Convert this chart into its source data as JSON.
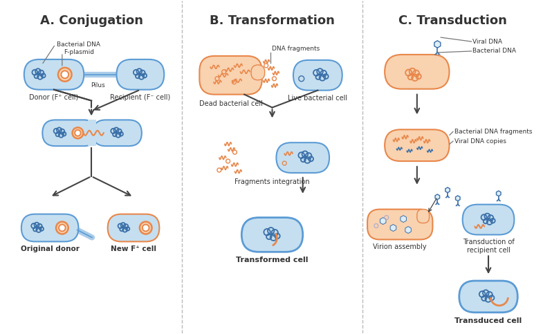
{
  "title_A": "A. Conjugation",
  "title_B": "B. Transformation",
  "title_C": "C. Transduction",
  "color_orange_fill": "#f9d2b0",
  "color_orange_stroke": "#e8874a",
  "color_blue_fill": "#c5dff0",
  "color_blue_stroke": "#5b9bd5",
  "color_dark_blue": "#3a6fa8",
  "color_light_blue_fill": "#ddeef8",
  "color_arrow": "#444444",
  "color_text": "#333333",
  "color_divider": "#bbbbbb",
  "background": "#ffffff",
  "label_donor": "Donor (F⁺ cell)",
  "label_recipient": "Recipient (F⁻ cell)",
  "label_bacterial_dna": "Bacterial DNA",
  "label_f_plasmid": "F-plasmid",
  "label_pilus": "Pilus",
  "label_original_donor": "Original donor",
  "label_new_f": "New F⁺ cell",
  "label_dead_cell": "Dead bacterial cell",
  "label_live_cell": "Live bacterial cell",
  "label_dna_fragments": "DNA fragments",
  "label_fragments_integration": "Fragments integration",
  "label_transformed_cell": "Transformed cell",
  "label_viral_dna": "Viral DNA",
  "label_bacterial_dna2": "Bacterial DNA",
  "label_bac_dna_fragments": "Bacterial DNA fragments",
  "label_viral_dna_copies": "Viral DNA copies",
  "label_virion_assembly": "Virion assembly",
  "label_transduction": "Transduction of\nrecipient cell",
  "label_transduced_cell": "Transduced cell"
}
